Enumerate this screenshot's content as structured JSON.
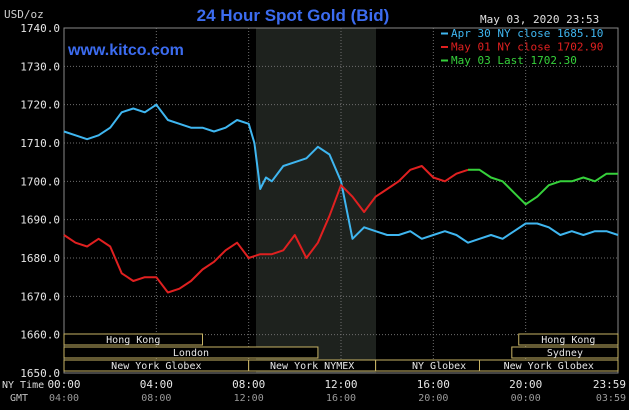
{
  "chart_data": {
    "type": "line",
    "title": "24 Hour Spot Gold (Bid)",
    "units_label": "USD/oz",
    "timestamp": "May 03, 2020 23:53",
    "watermark": "www.kitco.com",
    "ylim": [
      1650,
      1740
    ],
    "y_ticks": [
      "1740.0",
      "1730.0",
      "1720.0",
      "1710.0",
      "1700.0",
      "1690.0",
      "1680.0",
      "1670.0",
      "1660.0",
      "1650.0"
    ],
    "x_row1_label": "NY Time",
    "x_row2_label": "GMT",
    "x_ticks": [
      "00:00",
      "04:00",
      "08:00",
      "12:00",
      "16:00",
      "20:00",
      "23:59"
    ],
    "x_ticks_gmt": [
      "04:00",
      "08:00",
      "12:00",
      "16:00",
      "20:00",
      "00:00",
      "03:59"
    ],
    "grid": true,
    "legend_position": "top-right",
    "series": [
      {
        "name": "Apr 30 NY close 1685.10",
        "color": "#3fb6f0",
        "x": [
          0,
          0.5,
          1,
          1.5,
          2,
          2.5,
          3,
          3.5,
          4,
          4.5,
          5,
          5.5,
          6,
          6.5,
          7,
          7.5,
          8,
          8.25,
          8.5,
          8.75,
          9,
          9.5,
          10,
          10.5,
          11,
          11.5,
          12,
          12.5,
          13,
          13.5,
          14,
          14.5,
          15,
          15.5,
          16,
          16.5,
          17,
          17.5,
          18,
          18.5,
          19,
          19.5,
          20,
          20.5,
          21,
          21.5,
          22,
          22.5,
          23,
          23.5,
          24
        ],
        "values": [
          1713,
          1712,
          1711,
          1712,
          1714,
          1718,
          1719,
          1718,
          1720,
          1716,
          1715,
          1714,
          1714,
          1713,
          1714,
          1716,
          1715,
          1710,
          1698,
          1701,
          1700,
          1704,
          1705,
          1706,
          1709,
          1707,
          1700,
          1685,
          1688,
          1687,
          1686,
          1686,
          1687,
          1685,
          1686,
          1687,
          1686,
          1684,
          1685,
          1686,
          1685,
          1687,
          1689,
          1689,
          1688,
          1686,
          1687,
          1686,
          1687,
          1687,
          1686
        ]
      },
      {
        "name": "May 01 NY close 1702.90",
        "color": "#e02020",
        "x": [
          0,
          0.5,
          1,
          1.5,
          2,
          2.5,
          3,
          3.5,
          4,
          4.5,
          5,
          5.5,
          6,
          6.5,
          7,
          7.5,
          8,
          8.5,
          9,
          9.5,
          10,
          10.5,
          11,
          11.5,
          12,
          12.5,
          13,
          13.5,
          14,
          14.5,
          15,
          15.5,
          16,
          16.5,
          17,
          17.5
        ],
        "values": [
          1686,
          1684,
          1683,
          1685,
          1683,
          1676,
          1674,
          1675,
          1675,
          1671,
          1672,
          1674,
          1677,
          1679,
          1682,
          1684,
          1680,
          1681,
          1681,
          1682,
          1686,
          1680,
          1684,
          1691,
          1699,
          1696,
          1692,
          1696,
          1698,
          1700,
          1703,
          1704,
          1701,
          1700,
          1702,
          1703
        ]
      },
      {
        "name": "May 03 Last 1702.30",
        "color": "#36d13b",
        "x": [
          17.5,
          18,
          18.5,
          19,
          19.5,
          20,
          20.5,
          21,
          21.5,
          22,
          22.5,
          23,
          23.5,
          24
        ],
        "values": [
          1703,
          1703,
          1701,
          1700,
          1697,
          1694,
          1696,
          1699,
          1700,
          1700,
          1701,
          1700,
          1702,
          1702
        ]
      }
    ],
    "sessions": [
      {
        "label": "Hong Kong",
        "row": 1
      },
      {
        "label": "London",
        "row": 2
      },
      {
        "label": "New York Globex",
        "row": 3
      },
      {
        "label": "New York NYMEX",
        "row": 3
      },
      {
        "label": "NY Globex",
        "row": 3
      },
      {
        "label": "Hong Kong",
        "row": 1
      },
      {
        "label": "Sydney",
        "row": 2
      },
      {
        "label": "New York Globex",
        "row": 3
      }
    ]
  }
}
